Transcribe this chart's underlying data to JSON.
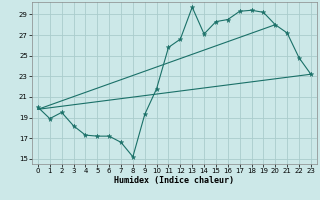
{
  "title": "",
  "xlabel": "Humidex (Indice chaleur)",
  "bg_color": "#cce8e8",
  "grid_color": "#aacccc",
  "line_color": "#1a7068",
  "xlim": [
    -0.5,
    23.5
  ],
  "ylim": [
    14.5,
    30.2
  ],
  "xticks": [
    0,
    1,
    2,
    3,
    4,
    5,
    6,
    7,
    8,
    9,
    10,
    11,
    12,
    13,
    14,
    15,
    16,
    17,
    18,
    19,
    20,
    21,
    22,
    23
  ],
  "yticks": [
    15,
    17,
    19,
    21,
    23,
    25,
    27,
    29
  ],
  "series1_x": [
    0,
    1,
    2,
    3,
    4,
    5,
    6,
    7,
    8,
    9,
    10,
    11,
    12,
    13,
    14,
    15,
    16,
    17,
    18,
    19,
    20,
    21,
    22,
    23
  ],
  "series1_y": [
    20.0,
    18.9,
    19.5,
    18.2,
    17.3,
    17.2,
    17.2,
    16.6,
    15.2,
    19.3,
    21.8,
    25.8,
    26.6,
    29.7,
    27.1,
    28.3,
    28.5,
    29.3,
    29.4,
    29.2,
    28.0,
    27.2,
    24.8,
    23.2
  ],
  "series2_x": [
    0,
    23
  ],
  "series2_y": [
    19.8,
    23.2
  ],
  "series3_x": [
    0,
    20
  ],
  "series3_y": [
    19.8,
    28.0
  ]
}
